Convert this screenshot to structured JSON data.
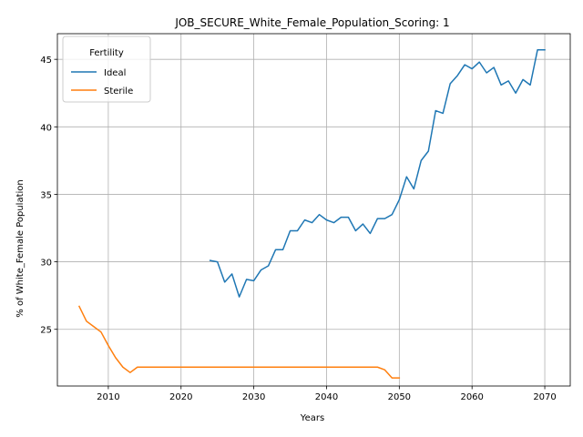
{
  "chart_data": {
    "type": "line",
    "title": "JOB_SECURE_White_Female_Population_Scoring: 1",
    "xlabel": "Years",
    "ylabel": "% of White_Female Population",
    "xlim": [
      2003,
      2073.5
    ],
    "ylim": [
      20.8,
      46.9
    ],
    "xticks": [
      2010,
      2020,
      2030,
      2040,
      2050,
      2060,
      2070
    ],
    "yticks": [
      25,
      30,
      35,
      40,
      45
    ],
    "grid": true,
    "legend": {
      "title": "Fertility",
      "placement": "top-left"
    },
    "series": [
      {
        "name": "Ideal",
        "color": "#1f77b4",
        "x": [
          2024,
          2025,
          2026,
          2027,
          2028,
          2029,
          2030,
          2031,
          2032,
          2033,
          2034,
          2035,
          2036,
          2037,
          2038,
          2039,
          2040,
          2041,
          2042,
          2043,
          2044,
          2045,
          2046,
          2047,
          2048,
          2049,
          2050,
          2051,
          2052,
          2053,
          2054,
          2055,
          2056,
          2057,
          2058,
          2059,
          2060,
          2061,
          2062,
          2063,
          2064,
          2065,
          2066,
          2067,
          2068,
          2069,
          2070
        ],
        "y": [
          30.1,
          30.0,
          28.5,
          29.1,
          27.4,
          28.7,
          28.6,
          29.4,
          29.7,
          30.9,
          30.9,
          32.3,
          32.3,
          33.1,
          32.9,
          33.5,
          33.1,
          32.9,
          33.3,
          33.3,
          32.3,
          32.8,
          32.1,
          33.2,
          33.2,
          33.5,
          34.6,
          36.3,
          35.4,
          37.5,
          38.2,
          41.2,
          41.0,
          43.2,
          43.8,
          44.6,
          44.3,
          44.8,
          44.0,
          44.4,
          43.1,
          43.4,
          42.5,
          43.5,
          43.1,
          45.7,
          45.7
        ]
      },
      {
        "name": "Sterile",
        "color": "#ff7f0e",
        "x": [
          2006,
          2007,
          2008,
          2009,
          2010,
          2011,
          2012,
          2013,
          2014,
          2015,
          2016,
          2017,
          2018,
          2019,
          2020,
          2021,
          2022,
          2023,
          2024,
          2025,
          2026,
          2027,
          2028,
          2029,
          2030,
          2031,
          2032,
          2033,
          2034,
          2035,
          2036,
          2037,
          2038,
          2039,
          2040,
          2041,
          2042,
          2043,
          2044,
          2045,
          2046,
          2047,
          2048,
          2049,
          2050
        ],
        "y": [
          26.7,
          25.6,
          25.2,
          24.8,
          23.8,
          22.9,
          22.2,
          21.8,
          22.2,
          22.2,
          22.2,
          22.2,
          22.2,
          22.2,
          22.2,
          22.2,
          22.2,
          22.2,
          22.2,
          22.2,
          22.2,
          22.2,
          22.2,
          22.2,
          22.2,
          22.2,
          22.2,
          22.2,
          22.2,
          22.2,
          22.2,
          22.2,
          22.2,
          22.2,
          22.2,
          22.2,
          22.2,
          22.2,
          22.2,
          22.2,
          22.2,
          22.2,
          22.0,
          21.4,
          21.4
        ]
      }
    ]
  }
}
